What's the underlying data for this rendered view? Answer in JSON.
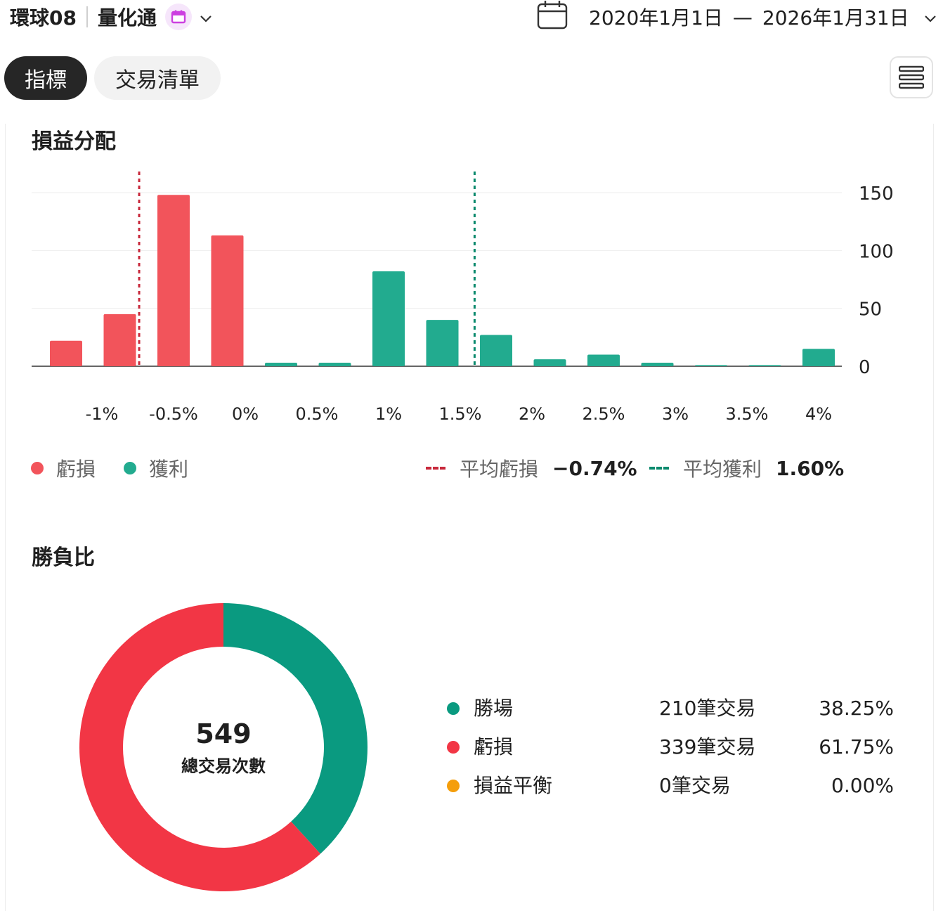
{
  "header": {
    "account": "環球08",
    "strategy": "量化通",
    "date_start": "2020年1月1日",
    "date_separator": "—",
    "date_end": "2026年1月31日"
  },
  "tabs": [
    {
      "label": "指標",
      "active": true
    },
    {
      "label": "交易清單",
      "active": false
    }
  ],
  "colors": {
    "loss": "#f2545b",
    "profit": "#22ab8f",
    "loss_avg_line": "#c8283b",
    "profit_avg_line": "#0b8a6e",
    "donut_win": "#0a9a80",
    "donut_loss": "#f23645",
    "breakeven": "#f59e0b"
  },
  "icons": {
    "strategy_badge": "calendar-icon",
    "date_picker": "calendar-icon",
    "dropdown": "chevron-down-icon",
    "menu": "menu-icon"
  },
  "pnl_section": {
    "title": "損益分配",
    "legend": {
      "loss_label": "虧損",
      "profit_label": "獲利",
      "avg_loss_label": "平均虧損",
      "avg_loss_value": "−0.74%",
      "avg_profit_label": "平均獲利",
      "avg_profit_value": "1.60%"
    }
  },
  "chart_data": {
    "type": "bar",
    "title": "損益分配",
    "x_tick_labels": [
      "-1%",
      "-0.5%",
      "0%",
      "0.5%",
      "1%",
      "1.5%",
      "2%",
      "2.5%",
      "3%",
      "3.5%",
      "4%"
    ],
    "x_ticks": [
      -1,
      -0.5,
      0,
      0.5,
      1,
      1.5,
      2,
      2.5,
      3,
      3.5,
      4
    ],
    "y_ticks": [
      0,
      50,
      100,
      150
    ],
    "ylim": [
      0,
      150
    ],
    "y_axis_side": "right",
    "series": [
      {
        "name": "虧損",
        "color": "#f2545b",
        "bins": [
          -1.25,
          -0.875,
          -0.5,
          -0.125
        ],
        "values": [
          22,
          45,
          148,
          113
        ]
      },
      {
        "name": "獲利",
        "color": "#22ab8f",
        "bins": [
          0.25,
          0.625,
          1.0,
          1.375,
          1.75,
          2.125,
          2.5,
          2.875,
          3.25,
          3.625,
          4.0
        ],
        "values": [
          3,
          3,
          82,
          40,
          27,
          6,
          10,
          3,
          1,
          1,
          15
        ]
      }
    ],
    "reference_lines": [
      {
        "label": "平均虧損",
        "value": -0.74,
        "color": "#c8283b",
        "style": "dashed"
      },
      {
        "label": "平均獲利",
        "value": 1.6,
        "color": "#0b8a6e",
        "style": "dashed"
      }
    ],
    "grid": true,
    "legend_position": "bottom"
  },
  "winloss_section": {
    "title": "勝負比",
    "total_value": "549",
    "total_label": "總交易次數",
    "rows": [
      {
        "name": "勝場",
        "count": "210筆交易",
        "pct": "38.25%",
        "fraction": 0.3825,
        "color": "#0a9a80"
      },
      {
        "name": "虧損",
        "count": "339筆交易",
        "pct": "61.75%",
        "fraction": 0.6175,
        "color": "#f23645"
      },
      {
        "name": "損益平衡",
        "count": "0筆交易",
        "pct": "0.00%",
        "fraction": 0.0,
        "color": "#f59e0b"
      }
    ]
  }
}
